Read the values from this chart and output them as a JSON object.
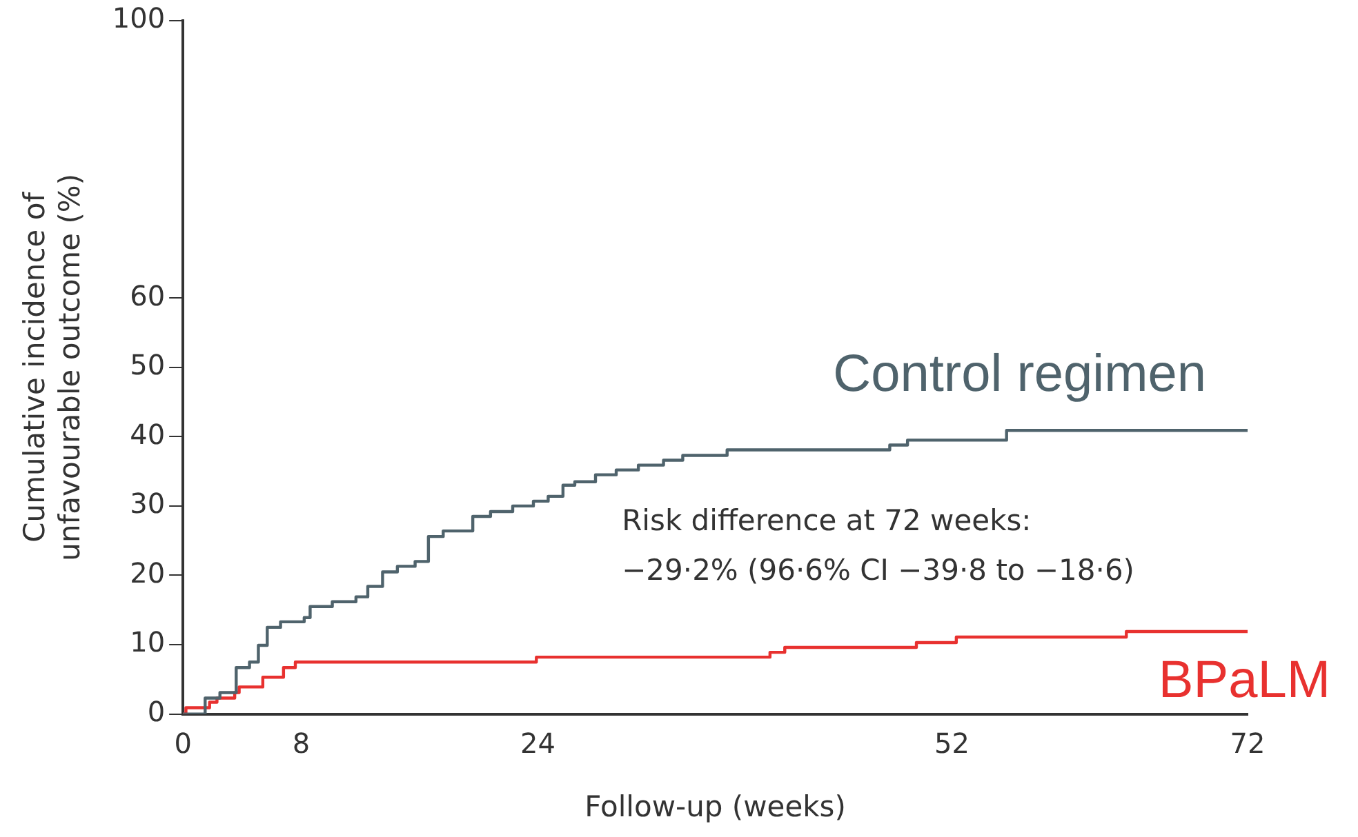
{
  "chart_data": {
    "type": "step",
    "xlabel": "Follow-up (weeks)",
    "ylabel": "Cumulative incidence of\nunfavourable outcome (%)",
    "xlim": [
      0,
      72
    ],
    "xticks": [
      0,
      8,
      24,
      52,
      72
    ],
    "ylim": [
      0,
      100
    ],
    "yticks": [
      0,
      10,
      20,
      30,
      40,
      50,
      60,
      100
    ],
    "grid": false,
    "legend": false,
    "marker": "none",
    "annotations": [
      "Risk difference at 72 weeks:\n−29·2% (96·6% CI −39·8 to −18·6)"
    ],
    "series": [
      {
        "name": "Control regimen",
        "color": "#4f636c",
        "x": [
          0,
          1.5,
          2.5,
          3.6,
          4.5,
          5.1,
          5.7,
          6.6,
          8.2,
          8.6,
          10.1,
          11.7,
          12.5,
          13.5,
          14.5,
          15.7,
          16.6,
          17.6,
          19.6,
          20.8,
          22.3,
          23.7,
          24.7,
          25.7,
          26.5,
          27.9,
          29.3,
          30.8,
          32.5,
          33.8,
          36.8,
          47.8,
          49.0,
          55.7,
          72
        ],
        "values": [
          0,
          2.3,
          3.1,
          6.7,
          7.5,
          9.9,
          12.5,
          13.3,
          13.9,
          15.5,
          16.2,
          16.9,
          18.4,
          20.5,
          21.3,
          22.0,
          25.6,
          26.4,
          28.5,
          29.2,
          30.0,
          30.7,
          31.4,
          33.0,
          33.5,
          34.5,
          35.2,
          35.9,
          36.6,
          37.3,
          38.1,
          38.8,
          39.5,
          40.9,
          40.9
        ]
      },
      {
        "name": "BPaLM",
        "color": "#e8312f",
        "x": [
          0,
          0.2,
          1.8,
          2.3,
          3.5,
          3.8,
          5.4,
          6.8,
          7.6,
          23.9,
          39.7,
          40.7,
          49.6,
          52.3,
          63.8,
          72
        ],
        "values": [
          0,
          0.9,
          1.7,
          2.3,
          3.1,
          3.9,
          5.3,
          6.7,
          7.5,
          8.2,
          8.9,
          9.6,
          10.3,
          11.1,
          11.9,
          11.9
        ]
      }
    ]
  }
}
